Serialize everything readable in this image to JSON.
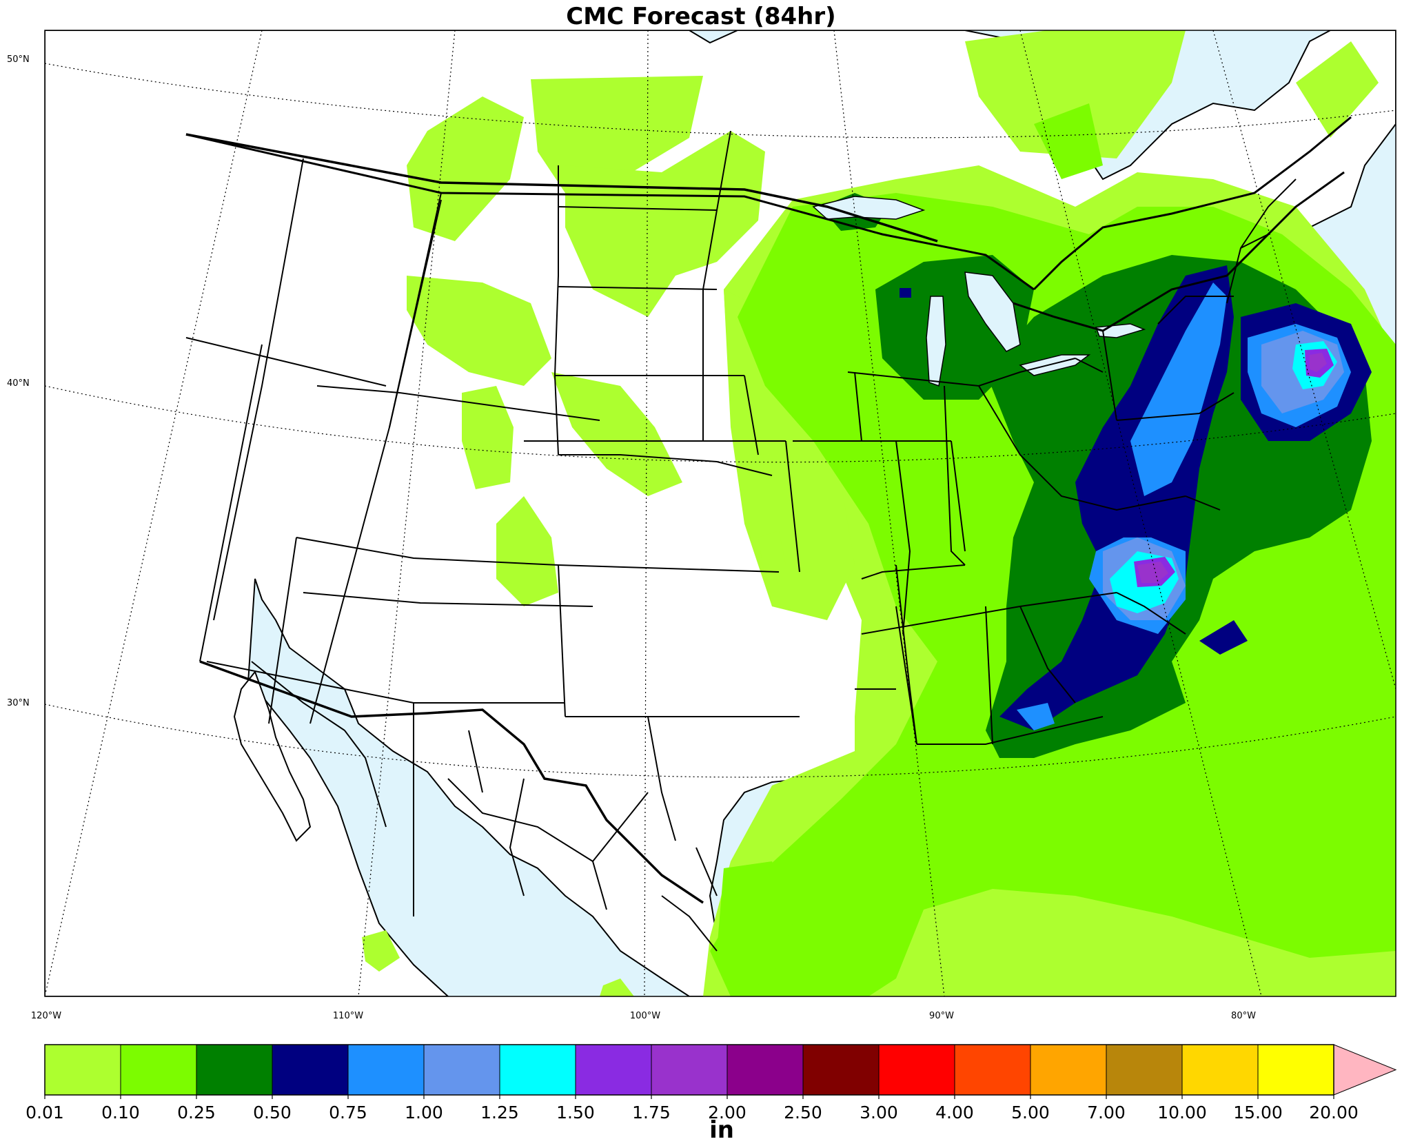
{
  "map": {
    "title": "CMC Forecast (84hr)",
    "units": "in",
    "lat_labels": [
      "50°N",
      "40°N",
      "30°N"
    ],
    "lon_labels": [
      "120°W",
      "110°W",
      "100°W",
      "90°W",
      "80°W"
    ],
    "colors": {
      "ocean": "#dff4fc",
      "land": "#ffffff",
      "border": "#000000"
    }
  },
  "colorbar": {
    "ticks": [
      "0.01",
      "0.10",
      "0.25",
      "0.50",
      "0.75",
      "1.00",
      "1.25",
      "1.50",
      "1.75",
      "2.00",
      "2.50",
      "3.00",
      "4.00",
      "5.00",
      "7.00",
      "10.00",
      "15.00",
      "20.00"
    ],
    "colors": [
      "#adff2f",
      "#7cfc00",
      "#008000",
      "#000080",
      "#1e90ff",
      "#6495ed",
      "#00ffff",
      "#8a2be2",
      "#9932cc",
      "#8b008b",
      "#800000",
      "#ff0000",
      "#ff4500",
      "#ffa500",
      "#b8860b",
      "#ffd700",
      "#ffff00"
    ],
    "extend_color": "#ffb6c1"
  }
}
